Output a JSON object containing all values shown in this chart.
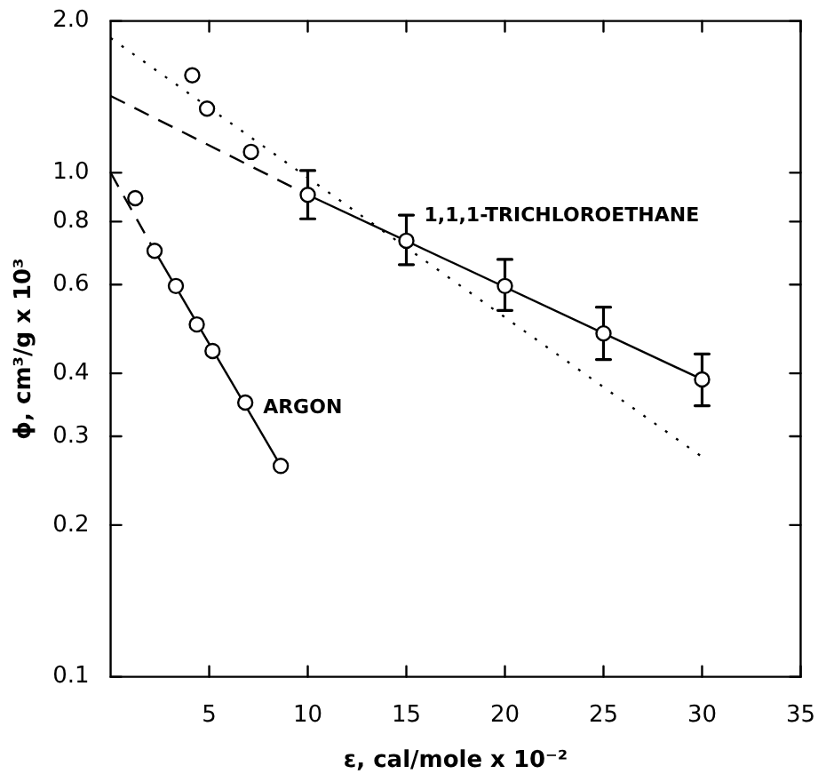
{
  "chart_data": {
    "type": "scatter",
    "xlabel": "ε, cal/mole x 10⁻²",
    "ylabel": "ϕ, cm³/g x 10³",
    "xlim": [
      0,
      35
    ],
    "xticks": [
      5,
      10,
      15,
      20,
      25,
      30,
      35
    ],
    "ylim": [
      0.1,
      2.0
    ],
    "yticks": [
      {
        "value": 0.1,
        "label": "0.1"
      },
      0.2,
      0.3,
      0.4,
      0.6,
      0.8,
      {
        "value": 1,
        "label": "1.0"
      },
      {
        "value": 2,
        "label": "2.0"
      }
    ],
    "log": "y",
    "grid": false,
    "legend": false,
    "series": [
      {
        "color": "#000000",
        "marker": "circle",
        "x": [
          4.14,
          4.89,
          7.12
        ],
        "values": [
          1.56,
          1.34,
          1.1
        ]
      },
      {
        "name": "1,1,1-TRICHLOROETHANE",
        "color": "#000000",
        "marker": "circle",
        "x": [
          10,
          15,
          20,
          25,
          30
        ],
        "values": [
          0.904,
          0.733,
          0.596,
          0.48,
          0.389
        ],
        "errors": [
          [
            0.81,
            1.01
          ],
          [
            0.657,
            0.824
          ],
          [
            0.533,
            0.673
          ],
          [
            0.426,
            0.541
          ],
          [
            0.345,
            0.437
          ]
        ]
      },
      {
        "type": "line",
        "color": "#000000",
        "line_style": "solid",
        "marker": "none",
        "x": [
          10,
          30
        ],
        "values": [
          0.904,
          0.389
        ]
      },
      {
        "type": "line",
        "color": "#000000",
        "line_style": "dashed",
        "marker": "none",
        "x": [
          0,
          10
        ],
        "values": [
          1.42,
          0.904
        ]
      },
      {
        "type": "line",
        "color": "#000000",
        "line_style": "dotted",
        "marker": "none",
        "x": [
          0,
          30
        ],
        "values": [
          1.85,
          0.273
        ]
      },
      {
        "name": "ARGON",
        "color": "#000000",
        "marker": "circle",
        "x": [
          1.25,
          2.23,
          3.31,
          4.37,
          5.17,
          6.83,
          8.63
        ],
        "values": [
          0.89,
          0.7,
          0.596,
          0.5,
          0.443,
          0.35,
          0.262
        ]
      },
      {
        "type": "line",
        "color": "#000000",
        "line_style": "solid",
        "marker": "none",
        "x": [
          2.23,
          8.63
        ],
        "values": [
          0.7,
          0.262
        ]
      },
      {
        "type": "line",
        "color": "#000000",
        "line_style": "dashed",
        "marker": "none",
        "x": [
          0,
          2.23
        ],
        "values": [
          1.0,
          0.7
        ]
      }
    ]
  }
}
